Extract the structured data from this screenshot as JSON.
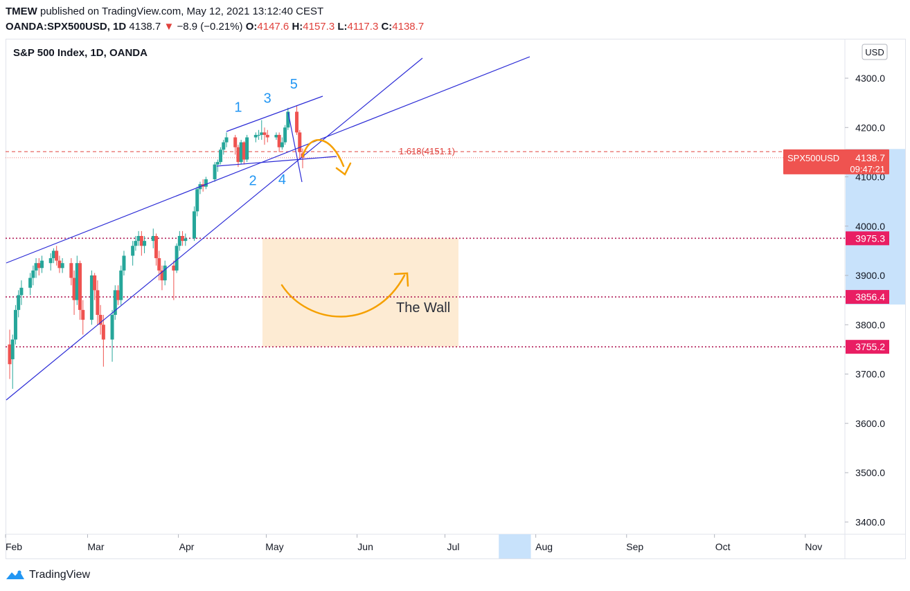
{
  "header": {
    "publisher": "TMEW",
    "published_text": "published on TradingView.com, May 12, 2021 13:12:40 CEST",
    "symbol": "OANDA:SPX500USD, 1D",
    "last": "4138.7",
    "change_arrow": "▼",
    "change": "−8.9 (−0.21%)",
    "o_label": "O:",
    "o_value": "4147.6",
    "h_label": "H:",
    "h_value": "4157.3",
    "l_label": "L:",
    "l_value": "4117.3",
    "c_label": "C:",
    "c_value": "4138.7"
  },
  "chart": {
    "legend_title": "S&P 500 Index, 1D, OANDA",
    "currency": "USD",
    "price_badge_label": "SPX500USD",
    "price_badge_value": "4138.7",
    "countdown": "09:47:21"
  },
  "footer": {
    "brand": "TradingView"
  },
  "colors": {
    "up": "#26a69a",
    "down": "#ef5350",
    "trendline": "#2b2bd6",
    "fib": "#e0403b",
    "level": "#b11d57",
    "level_badge": "#e91e63",
    "arrow": "#f5a000",
    "box": "#fdebd3",
    "axis_highlight": "#c8e2fb",
    "wave_label": "#2196f3"
  },
  "chart_data": {
    "type": "candlestick",
    "title": "S&P 500 Index, 1D, OANDA",
    "symbol": "SPX500USD",
    "currency": "USD",
    "last_price": 4138.7,
    "ylim": [
      3350,
      4380
    ],
    "y_ticks": [
      3400,
      3500,
      3600,
      3700,
      3800,
      3900,
      4000,
      4100,
      4200,
      4300
    ],
    "y_tick_labels": [
      "3400.0",
      "3500.0",
      "3600.0",
      "3700.0",
      "3800.0",
      "3900.0",
      "4000.0",
      "4100.0",
      "4200.0",
      "4300.0"
    ],
    "x_ticks": [
      "Feb",
      "Mar",
      "Apr",
      "May",
      "Jun",
      "Jul",
      "Aug",
      "Sep",
      "Oct",
      "Nov"
    ],
    "x_range_days": [
      0,
      304
    ],
    "x_tick_days": [
      0,
      28,
      59,
      89,
      120,
      150,
      181,
      212,
      242,
      273
    ],
    "highlight_day_range": [
      175,
      185
    ],
    "candles": [
      {
        "d": 0,
        "o": 3760,
        "h": 3790,
        "l": 3690,
        "c": 3720
      },
      {
        "d": 1,
        "o": 3730,
        "h": 3780,
        "l": 3670,
        "c": 3770
      },
      {
        "d": 2,
        "o": 3770,
        "h": 3840,
        "l": 3760,
        "c": 3830
      },
      {
        "d": 3,
        "o": 3830,
        "h": 3870,
        "l": 3815,
        "c": 3860
      },
      {
        "d": 4,
        "o": 3860,
        "h": 3890,
        "l": 3840,
        "c": 3875
      },
      {
        "d": 7,
        "o": 3875,
        "h": 3905,
        "l": 3860,
        "c": 3895
      },
      {
        "d": 8,
        "o": 3895,
        "h": 3920,
        "l": 3880,
        "c": 3910
      },
      {
        "d": 9,
        "o": 3910,
        "h": 3935,
        "l": 3895,
        "c": 3925
      },
      {
        "d": 10,
        "o": 3925,
        "h": 3935,
        "l": 3900,
        "c": 3915
      },
      {
        "d": 11,
        "o": 3915,
        "h": 3940,
        "l": 3905,
        "c": 3930
      },
      {
        "d": 14,
        "o": 3925,
        "h": 3945,
        "l": 3910,
        "c": 3935
      },
      {
        "d": 15,
        "o": 3935,
        "h": 3955,
        "l": 3925,
        "c": 3950
      },
      {
        "d": 16,
        "o": 3950,
        "h": 3960,
        "l": 3920,
        "c": 3930
      },
      {
        "d": 17,
        "o": 3930,
        "h": 3940,
        "l": 3905,
        "c": 3915
      },
      {
        "d": 18,
        "o": 3915,
        "h": 3935,
        "l": 3905,
        "c": 3925
      },
      {
        "d": 21,
        "o": 3925,
        "h": 3935,
        "l": 3880,
        "c": 3895
      },
      {
        "d": 22,
        "o": 3895,
        "h": 3910,
        "l": 3820,
        "c": 3850
      },
      {
        "d": 23,
        "o": 3850,
        "h": 3940,
        "l": 3840,
        "c": 3925
      },
      {
        "d": 24,
        "o": 3925,
        "h": 3930,
        "l": 3810,
        "c": 3830
      },
      {
        "d": 25,
        "o": 3830,
        "h": 3850,
        "l": 3780,
        "c": 3810
      },
      {
        "d": 28,
        "o": 3810,
        "h": 3910,
        "l": 3800,
        "c": 3900
      },
      {
        "d": 29,
        "o": 3900,
        "h": 3905,
        "l": 3850,
        "c": 3870
      },
      {
        "d": 30,
        "o": 3870,
        "h": 3890,
        "l": 3800,
        "c": 3820
      },
      {
        "d": 31,
        "o": 3820,
        "h": 3840,
        "l": 3780,
        "c": 3800
      },
      {
        "d": 32,
        "o": 3800,
        "h": 3820,
        "l": 3715,
        "c": 3770
      },
      {
        "d": 35,
        "o": 3770,
        "h": 3830,
        "l": 3725,
        "c": 3820
      },
      {
        "d": 36,
        "o": 3820,
        "h": 3880,
        "l": 3810,
        "c": 3870
      },
      {
        "d": 37,
        "o": 3870,
        "h": 3880,
        "l": 3840,
        "c": 3850
      },
      {
        "d": 38,
        "o": 3850,
        "h": 3920,
        "l": 3840,
        "c": 3910
      },
      {
        "d": 39,
        "o": 3910,
        "h": 3950,
        "l": 3900,
        "c": 3940
      },
      {
        "d": 42,
        "o": 3940,
        "h": 3970,
        "l": 3920,
        "c": 3960
      },
      {
        "d": 43,
        "o": 3960,
        "h": 3980,
        "l": 3950,
        "c": 3970
      },
      {
        "d": 44,
        "o": 3970,
        "h": 3990,
        "l": 3960,
        "c": 3980
      },
      {
        "d": 45,
        "o": 3980,
        "h": 3990,
        "l": 3940,
        "c": 3960
      },
      {
        "d": 46,
        "o": 3960,
        "h": 3980,
        "l": 3945,
        "c": 3970
      },
      {
        "d": 49,
        "o": 3970,
        "h": 3995,
        "l": 3955,
        "c": 3980
      },
      {
        "d": 50,
        "o": 3980,
        "h": 3985,
        "l": 3920,
        "c": 3935
      },
      {
        "d": 51,
        "o": 3935,
        "h": 3950,
        "l": 3890,
        "c": 3910
      },
      {
        "d": 52,
        "o": 3910,
        "h": 3920,
        "l": 3870,
        "c": 3890
      },
      {
        "d": 53,
        "o": 3890,
        "h": 3930,
        "l": 3880,
        "c": 3920
      },
      {
        "d": 56,
        "o": 3920,
        "h": 3930,
        "l": 3850,
        "c": 3910
      },
      {
        "d": 57,
        "o": 3910,
        "h": 3965,
        "l": 3905,
        "c": 3960
      },
      {
        "d": 58,
        "o": 3960,
        "h": 3990,
        "l": 3950,
        "c": 3980
      },
      {
        "d": 59,
        "o": 3980,
        "h": 3990,
        "l": 3960,
        "c": 3970
      },
      {
        "d": 60,
        "o": 3970,
        "h": 3985,
        "l": 3960,
        "c": 3975
      },
      {
        "d": 63,
        "o": 3975,
        "h": 4040,
        "l": 3970,
        "c": 4030
      },
      {
        "d": 64,
        "o": 4030,
        "h": 4080,
        "l": 4020,
        "c": 4075
      },
      {
        "d": 65,
        "o": 4075,
        "h": 4090,
        "l": 4065,
        "c": 4085
      },
      {
        "d": 66,
        "o": 4085,
        "h": 4095,
        "l": 4070,
        "c": 4080
      },
      {
        "d": 67,
        "o": 4080,
        "h": 4100,
        "l": 4075,
        "c": 4095
      },
      {
        "d": 70,
        "o": 4095,
        "h": 4130,
        "l": 4090,
        "c": 4125
      },
      {
        "d": 71,
        "o": 4125,
        "h": 4135,
        "l": 4110,
        "c": 4130
      },
      {
        "d": 72,
        "o": 4130,
        "h": 4160,
        "l": 4125,
        "c": 4155
      },
      {
        "d": 73,
        "o": 4155,
        "h": 4175,
        "l": 4145,
        "c": 4170
      },
      {
        "d": 74,
        "o": 4170,
        "h": 4190,
        "l": 4160,
        "c": 4180
      },
      {
        "d": 77,
        "o": 4180,
        "h": 4185,
        "l": 4145,
        "c": 4160
      },
      {
        "d": 78,
        "o": 4160,
        "h": 4165,
        "l": 4120,
        "c": 4130
      },
      {
        "d": 79,
        "o": 4130,
        "h": 4175,
        "l": 4125,
        "c": 4170
      },
      {
        "d": 80,
        "o": 4170,
        "h": 4172,
        "l": 4125,
        "c": 4135
      },
      {
        "d": 81,
        "o": 4135,
        "h": 4185,
        "l": 4130,
        "c": 4180
      },
      {
        "d": 84,
        "o": 4180,
        "h": 4190,
        "l": 4170,
        "c": 4185
      },
      {
        "d": 85,
        "o": 4185,
        "h": 4195,
        "l": 4175,
        "c": 4185
      },
      {
        "d": 86,
        "o": 4185,
        "h": 4215,
        "l": 4175,
        "c": 4190
      },
      {
        "d": 87,
        "o": 4190,
        "h": 4200,
        "l": 4165,
        "c": 4185
      },
      {
        "d": 88,
        "o": 4185,
        "h": 4195,
        "l": 4170,
        "c": 4180
      },
      {
        "d": 91,
        "o": 4180,
        "h": 4190,
        "l": 4175,
        "c": 4185
      },
      {
        "d": 92,
        "o": 4185,
        "h": 4190,
        "l": 4150,
        "c": 4160
      },
      {
        "d": 93,
        "o": 4160,
        "h": 4180,
        "l": 4155,
        "c": 4170
      },
      {
        "d": 94,
        "o": 4170,
        "h": 4205,
        "l": 4165,
        "c": 4200
      },
      {
        "d": 95,
        "o": 4200,
        "h": 4240,
        "l": 4195,
        "c": 4232
      },
      {
        "d": 98,
        "o": 4232,
        "h": 4245,
        "l": 4185,
        "c": 4190
      },
      {
        "d": 99,
        "o": 4190,
        "h": 4195,
        "l": 4135,
        "c": 4150
      },
      {
        "d": 100,
        "o": 4147.6,
        "h": 4157.3,
        "l": 4117.3,
        "c": 4138.7
      }
    ],
    "horizontal_levels": [
      {
        "label": "3975.3",
        "value": 3975.3
      },
      {
        "label": "3856.4",
        "value": 3856.4
      },
      {
        "label": "3755.2",
        "value": 3755.2
      }
    ],
    "fib_level": {
      "label": "1.618(4151.1)",
      "value": 4151.1
    },
    "wave_labels": [
      {
        "text": "1",
        "d": 78,
        "price": 4232
      },
      {
        "text": "2",
        "d": 83,
        "price": 4083
      },
      {
        "text": "3",
        "d": 88,
        "price": 4250
      },
      {
        "text": "4",
        "d": 93,
        "price": 4085
      },
      {
        "text": "5",
        "d": 97,
        "price": 4279
      }
    ],
    "zone": {
      "label": "The Wall",
      "day_start": 88,
      "day_end": 160,
      "price_high": 3975.3,
      "price_low": 3755.2
    }
  }
}
